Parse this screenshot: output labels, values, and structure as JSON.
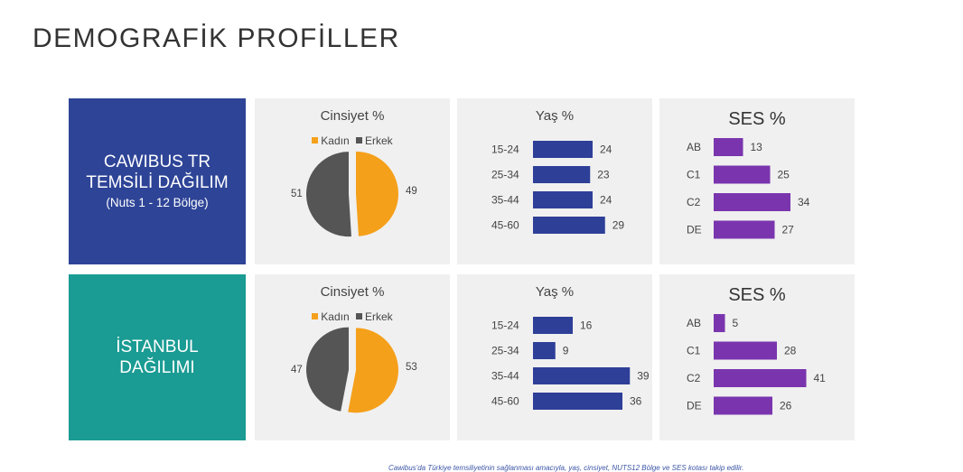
{
  "page": {
    "title": "DEMOGRAFİK PROFİLLER",
    "footnote": "Cawibus'da Türkiye temsiliyetinin sağlanması amacıyla, yaş, cinsiyet, NUTS12 Bölge ve SES kotası takip edilir."
  },
  "colors": {
    "row1_label_bg": "#2e4497",
    "row2_label_bg": "#1a9b93",
    "female": "#f5a01a",
    "male": "#555555",
    "age_bar": "#2e3f98",
    "ses_bar": "#7a35ae",
    "panel_bg": "#f0f0f0"
  },
  "rows": [
    {
      "label_lines": [
        "CAWIBUS TR",
        "TEMSİLİ DAĞILIM",
        "(Nuts 1 - 12 Bölge)"
      ],
      "sex_title": "Cinsiyet %",
      "sex_legend": [
        "Kadın",
        "Erkek"
      ],
      "age_title": "Yaş %",
      "ses_title": "SES %"
    },
    {
      "label_lines": [
        "İSTANBUL",
        "DAĞILIMI",
        ""
      ],
      "sex_title": "Cinsiyet %",
      "sex_legend": [
        "Kadın",
        "Erkek"
      ],
      "age_title": "Yaş %",
      "ses_title": "SES %"
    }
  ],
  "chart_data": [
    {
      "type": "pie",
      "title": "Cinsiyet %",
      "categories": [
        "Kadın",
        "Erkek"
      ],
      "values": [
        49,
        51
      ],
      "colors": [
        "#f5a01a",
        "#555555"
      ],
      "legend": "top"
    },
    {
      "type": "bar",
      "orientation": "horizontal",
      "title": "Yaş %",
      "categories": [
        "15-24",
        "25-34",
        "35-44",
        "45-60"
      ],
      "values": [
        24,
        23,
        24,
        29
      ],
      "color": "#2e3f98"
    },
    {
      "type": "bar",
      "orientation": "horizontal",
      "title": "SES %",
      "categories": [
        "AB",
        "C1",
        "C2",
        "DE"
      ],
      "values": [
        13,
        25,
        34,
        27
      ],
      "color": "#7a35ae"
    },
    {
      "type": "pie",
      "title": "Cinsiyet %",
      "categories": [
        "Kadın",
        "Erkek"
      ],
      "values": [
        53,
        47
      ],
      "colors": [
        "#f5a01a",
        "#555555"
      ],
      "legend": "top"
    },
    {
      "type": "bar",
      "orientation": "horizontal",
      "title": "Yaş %",
      "categories": [
        "15-24",
        "25-34",
        "35-44",
        "45-60"
      ],
      "values": [
        16,
        9,
        39,
        36
      ],
      "color": "#2e3f98"
    },
    {
      "type": "bar",
      "orientation": "horizontal",
      "title": "SES %",
      "categories": [
        "AB",
        "C1",
        "C2",
        "DE"
      ],
      "values": [
        5,
        28,
        41,
        26
      ],
      "color": "#7a35ae"
    }
  ]
}
